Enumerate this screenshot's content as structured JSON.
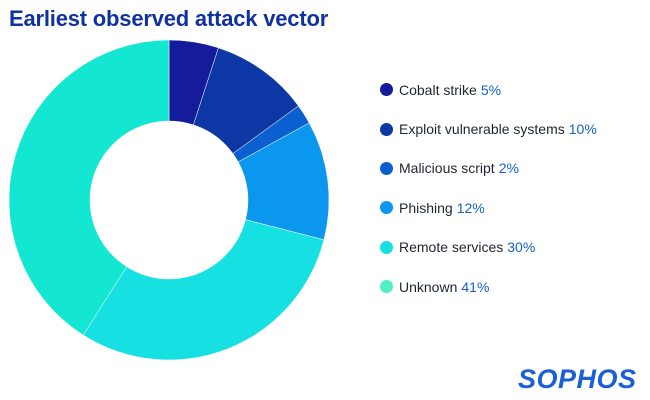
{
  "header": {
    "title": "Earliest observed attack vector"
  },
  "logo": {
    "text": "SOPHOS"
  },
  "chart_data": {
    "type": "pie",
    "title": "Earliest observed attack vector",
    "donut": true,
    "legend_position": "right",
    "categories": [
      "Cobalt strike",
      "Exploit vulnerable systems",
      "Malicious script",
      "Phishing",
      "Remote services",
      "Unknown"
    ],
    "values": [
      5,
      10,
      2,
      12,
      30,
      41
    ],
    "value_labels": [
      "5%",
      "10%",
      "2%",
      "12%",
      "30%",
      "41%"
    ],
    "colors": [
      "#141c9c",
      "#0e37a6",
      "#0b5fd0",
      "#0b97ee",
      "#17e0e3",
      "#13e6d1"
    ],
    "legend_dot_colors": [
      "#141c9c",
      "#0e37a6",
      "#0b5fd0",
      "#0b97ee",
      "#17e0e3",
      "#4ef0c4"
    ]
  }
}
